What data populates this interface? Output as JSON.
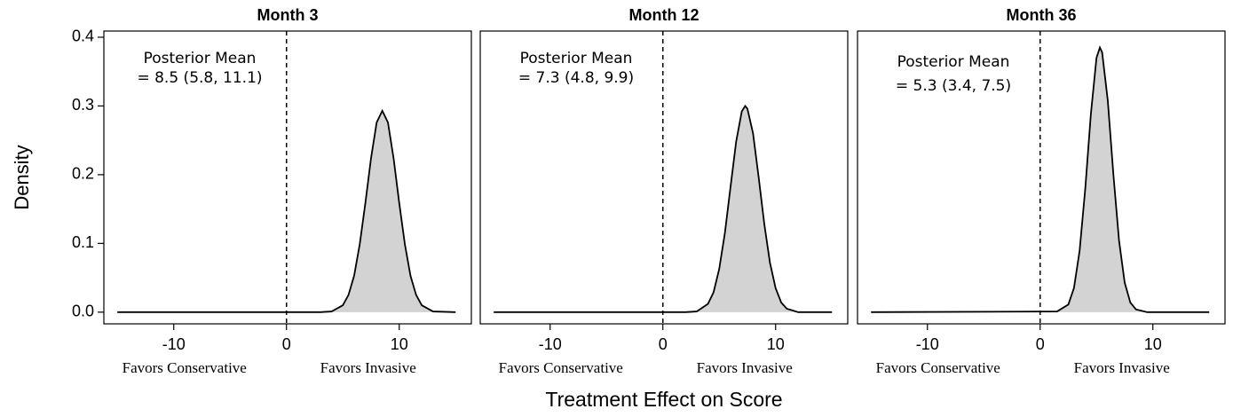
{
  "ylabel": "Density",
  "xlabel": "Treatment Effect on Score",
  "chart_data": [
    {
      "type": "area",
      "title": "Month 3",
      "annotation": [
        "Posterior Mean",
        "= 8.5 (5.8, 11.1)"
      ],
      "left_label": "Favors Conservative",
      "right_label": "Favors Invasive",
      "x": [
        -15,
        3,
        4,
        5,
        5.5,
        6,
        6.5,
        7,
        7.5,
        8,
        8.5,
        9,
        9.5,
        10,
        10.5,
        11,
        11.5,
        12,
        13,
        15
      ],
      "values": [
        0,
        0,
        0.001,
        0.01,
        0.025,
        0.053,
        0.099,
        0.159,
        0.224,
        0.276,
        0.293,
        0.276,
        0.224,
        0.159,
        0.099,
        0.053,
        0.025,
        0.01,
        0.001,
        0
      ],
      "color": "#d3d3d3",
      "vline": 0,
      "xlim": [
        -16.2,
        16.4
      ],
      "ylim": [
        -0.017,
        0.409
      ],
      "xticks": [
        -10,
        0,
        10
      ],
      "yticks": [
        {
          "value": 0,
          "label": "0.0"
        },
        0.1,
        0.2,
        0.3,
        0.4
      ]
    },
    {
      "type": "area",
      "title": "Month 12",
      "annotation": [
        "Posterior Mean",
        "= 7.3 (4.8, 9.9)"
      ],
      "left_label": "Favors Conservative",
      "right_label": "Favors Invasive",
      "x": [
        -15,
        2,
        3,
        4,
        4.5,
        5,
        5.5,
        6,
        6.5,
        7,
        7.3,
        7.5,
        8,
        8.5,
        9,
        9.5,
        10,
        10.5,
        11,
        12,
        15
      ],
      "values": [
        0,
        0,
        0.001,
        0.012,
        0.029,
        0.063,
        0.115,
        0.182,
        0.248,
        0.292,
        0.3,
        0.296,
        0.26,
        0.196,
        0.128,
        0.072,
        0.035,
        0.014,
        0.005,
        0,
        0
      ],
      "color": "#d3d3d3",
      "vline": 0,
      "xlim": [
        -16.2,
        16.4
      ],
      "ylim": [
        -0.017,
        0.409
      ],
      "xticks": [
        -10,
        0,
        10
      ]
    },
    {
      "type": "area",
      "title": "Month 36",
      "annotation": [
        "Posterior Mean",
        "= 5.3 (3.4, 7.5)"
      ],
      "left_label": "Favors Conservative",
      "right_label": "Favors Invasive",
      "x": [
        -15,
        1.5,
        2.5,
        3,
        3.5,
        4,
        4.5,
        5,
        5.3,
        5.5,
        6,
        6.5,
        7,
        7.5,
        8,
        8.5,
        9.5,
        15
      ],
      "values": [
        0,
        0.001,
        0.011,
        0.035,
        0.089,
        0.179,
        0.288,
        0.37,
        0.385,
        0.378,
        0.308,
        0.2,
        0.104,
        0.043,
        0.014,
        0.004,
        0,
        0
      ],
      "color": "#d3d3d3",
      "vline": 0,
      "xlim": [
        -16.2,
        16.4
      ],
      "ylim": [
        -0.017,
        0.409
      ],
      "xticks": [
        -10,
        0,
        10
      ]
    }
  ]
}
